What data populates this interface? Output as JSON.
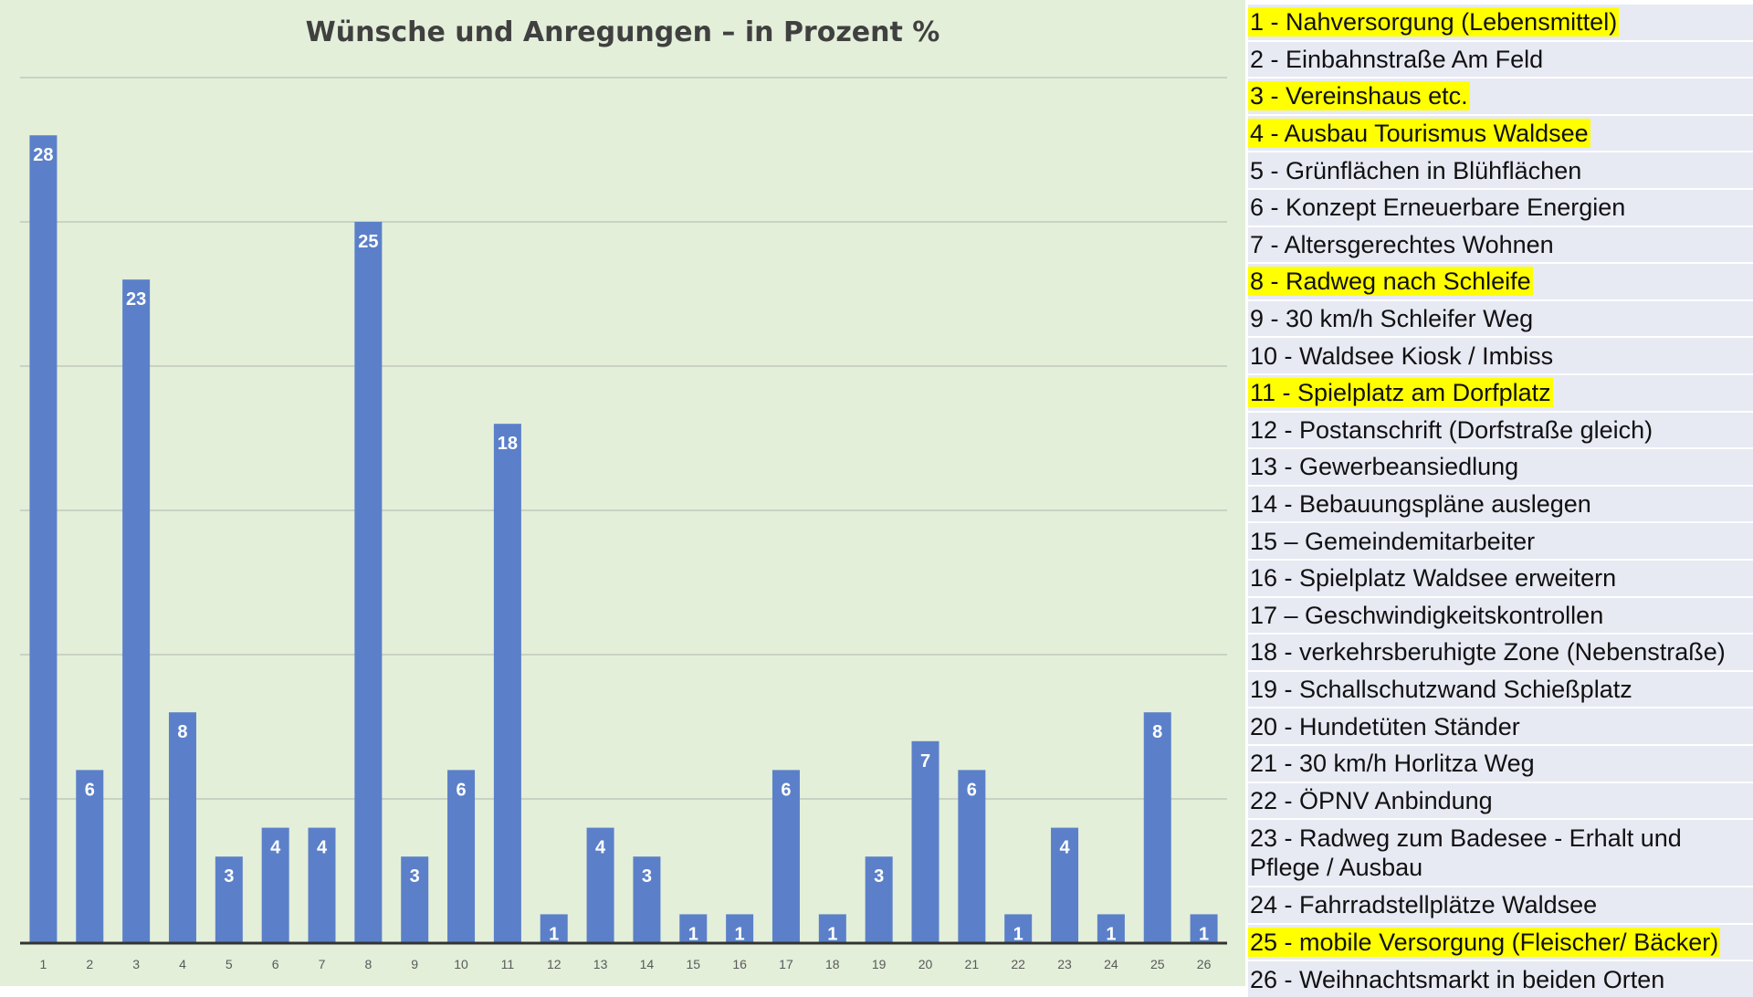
{
  "chart_data": {
    "type": "bar",
    "title": "Wünsche und Anregungen – in Prozent %",
    "categories": [
      "1",
      "2",
      "3",
      "4",
      "5",
      "6",
      "7",
      "8",
      "9",
      "10",
      "11",
      "12",
      "13",
      "14",
      "15",
      "16",
      "17",
      "18",
      "19",
      "20",
      "21",
      "22",
      "23",
      "24",
      "25",
      "26"
    ],
    "values": [
      28,
      6,
      23,
      8,
      3,
      4,
      4,
      25,
      3,
      6,
      18,
      1,
      4,
      3,
      1,
      1,
      6,
      1,
      3,
      7,
      6,
      1,
      4,
      1,
      8,
      1
    ],
    "xlabel": "",
    "ylabel": "",
    "grid": true,
    "legend": "right",
    "colors": {
      "bar": "#5b80c9",
      "data_label": "#ffffff",
      "background": "#e3efd9",
      "highlight": "#ffff00"
    }
  },
  "legend_items": [
    {
      "text": "1 - Nahversorgung (Lebensmittel)",
      "highlight": true
    },
    {
      "text": "2 - Einbahnstraße Am Feld",
      "highlight": false
    },
    {
      "text": "3 - Vereinshaus etc.",
      "highlight": true
    },
    {
      "text": "4 - Ausbau Tourismus Waldsee",
      "highlight": true
    },
    {
      "text": "5 - Grünflächen in Blühflächen",
      "highlight": false
    },
    {
      "text": "6 - Konzept Erneuerbare Energien",
      "highlight": false
    },
    {
      "text": "7 - Altersgerechtes Wohnen",
      "highlight": false
    },
    {
      "text": "8 - Radweg nach Schleife",
      "highlight": true
    },
    {
      "text": "9 - 30 km/h Schleifer Weg",
      "highlight": false
    },
    {
      "text": "10 - Waldsee Kiosk / Imbiss",
      "highlight": false
    },
    {
      "text": "11 - Spielplatz am Dorfplatz",
      "highlight": true
    },
    {
      "text": "12 - Postanschrift (Dorfstraße gleich)",
      "highlight": false
    },
    {
      "text": "13 - Gewerbeansiedlung",
      "highlight": false
    },
    {
      "text": "14 - Bebauungspläne auslegen",
      "highlight": false
    },
    {
      "text": "15 – Gemeindemitarbeiter",
      "highlight": false
    },
    {
      "text": "16 - Spielplatz Waldsee erweitern",
      "highlight": false
    },
    {
      "text": "17 – Geschwindigkeitskontrollen",
      "highlight": false
    },
    {
      "text": "18 - verkehrsberuhigte Zone (Nebenstraße)",
      "highlight": false
    },
    {
      "text": "19 - Schallschutzwand Schießplatz",
      "highlight": false
    },
    {
      "text": "20 - Hundetüten Ständer",
      "highlight": false
    },
    {
      "text": "21 - 30 km/h Horlitza Weg",
      "highlight": false
    },
    {
      "text": "22 - ÖPNV Anbindung",
      "highlight": false
    },
    {
      "text": "23 - Radweg zum Badesee - Erhalt und Pflege / Ausbau",
      "highlight": false
    },
    {
      "text": "24 - Fahrradstellplätze Waldsee",
      "highlight": false
    },
    {
      "text": "25 - mobile Versorgung (Fleischer/ Bäcker)",
      "highlight": true
    },
    {
      "text": "26 - Weihnachtsmarkt in beiden Orten",
      "highlight": false
    }
  ]
}
